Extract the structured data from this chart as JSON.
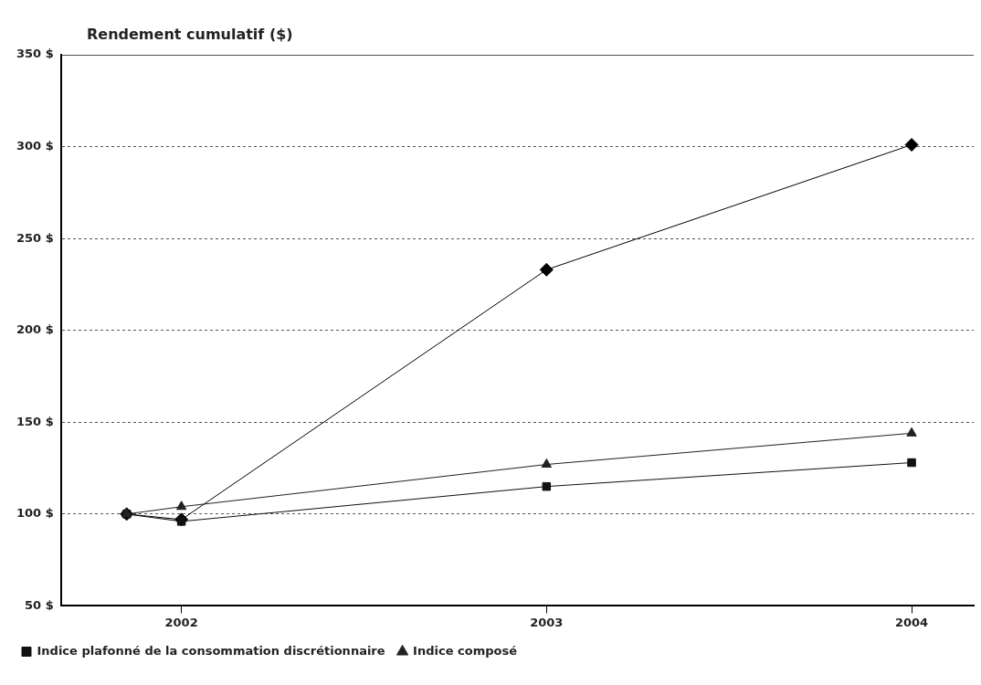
{
  "chart_data": {
    "type": "line",
    "title": "Rendement cumulatif ($)",
    "x": [
      2001.85,
      2002,
      2003,
      2004
    ],
    "xlim": [
      2001.67,
      2004.17
    ],
    "xticks": [
      2002,
      2003,
      2004
    ],
    "ylim": [
      50,
      350
    ],
    "yticks": [
      {
        "value": 50,
        "label": "50 $"
      },
      {
        "value": 100,
        "label": "100 $"
      },
      {
        "value": 150,
        "label": "150 $"
      },
      {
        "value": 200,
        "label": "200 $"
      },
      {
        "value": 250,
        "label": "250 $"
      },
      {
        "value": 300,
        "label": "300 $"
      },
      {
        "value": 350,
        "label": "350 $"
      }
    ],
    "grid": "y",
    "legend": "bottom",
    "line_style": "solid",
    "series": [
      {
        "color": "#000000",
        "marker": "diamond",
        "values": [
          100,
          97,
          233,
          301
        ]
      },
      {
        "name": "Indice plafonné de la consommation discrétionnaire",
        "color": "#111111",
        "marker": "square",
        "values": [
          100,
          96,
          115,
          128
        ]
      },
      {
        "name": "Indice composé",
        "color": "#222222",
        "marker": "triangle",
        "values": [
          100,
          104,
          127,
          144
        ]
      }
    ]
  }
}
